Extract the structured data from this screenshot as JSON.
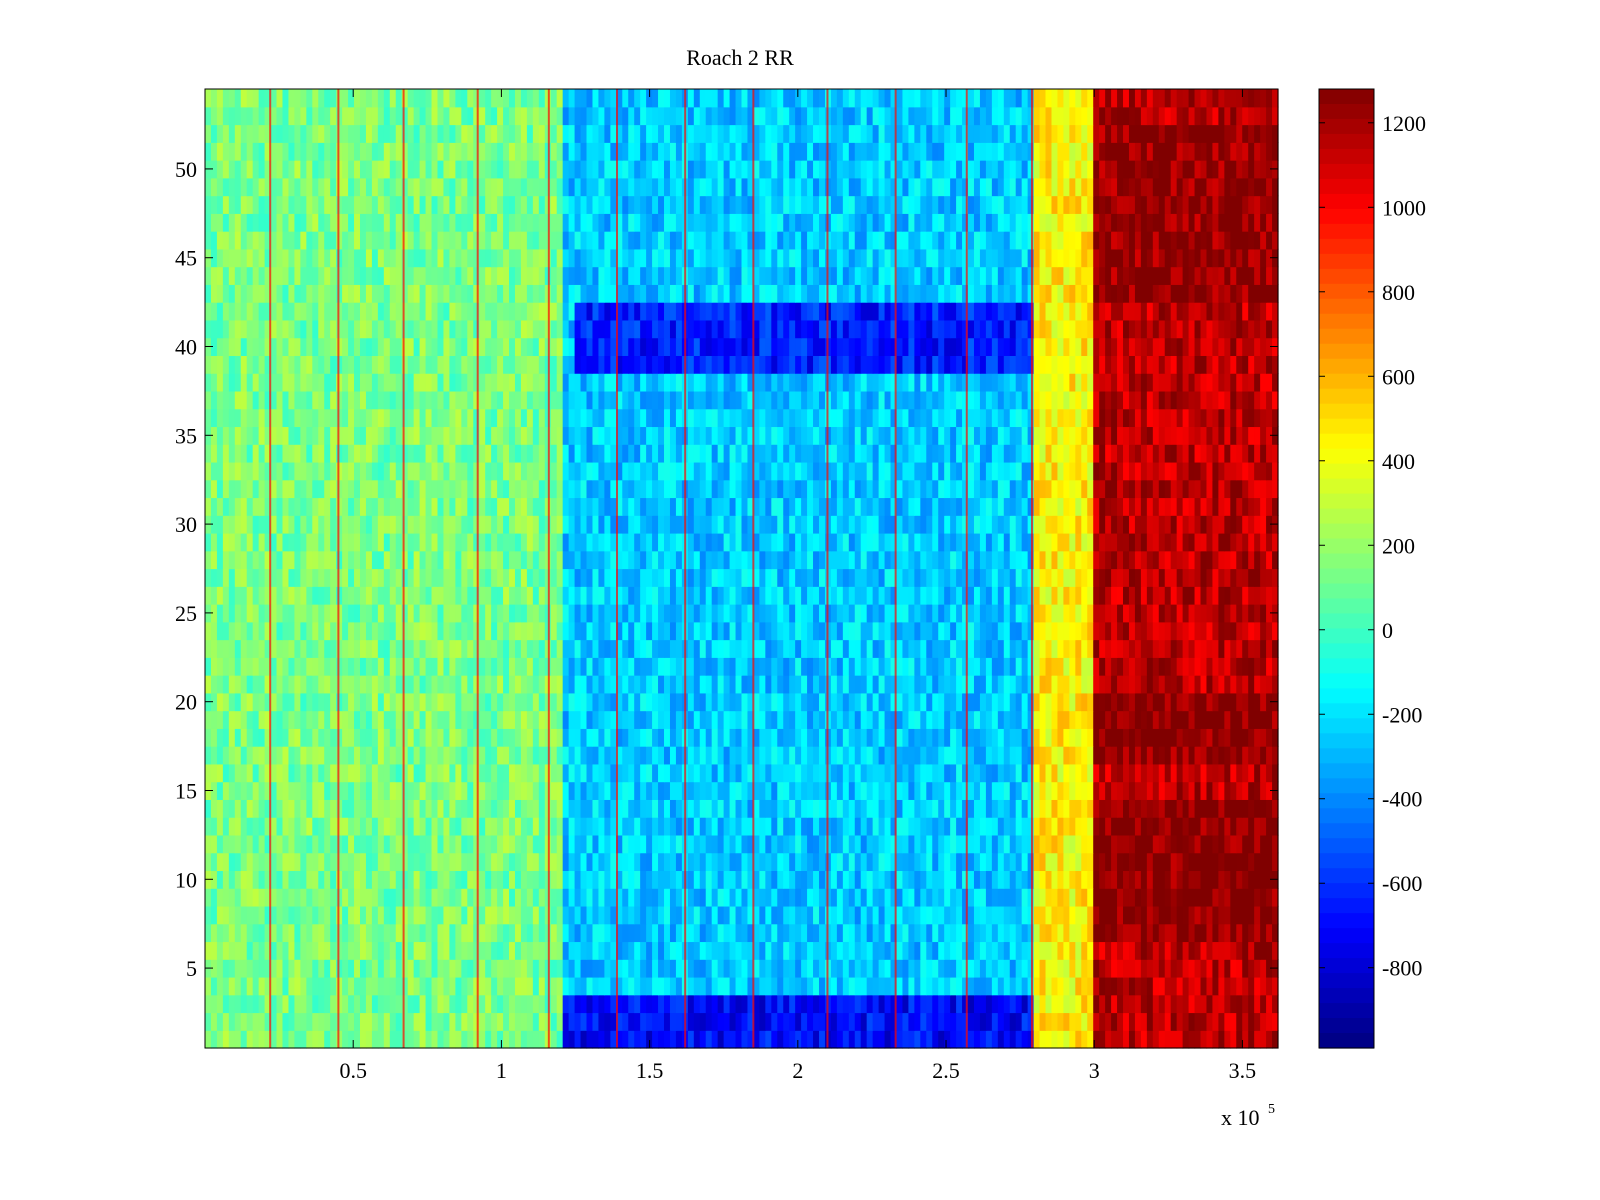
{
  "chart_data": {
    "type": "heatmap",
    "title": "Roach 2 RR",
    "xlabel": "",
    "ylabel": "",
    "x_range": [
      0,
      362000
    ],
    "y_range": [
      0.5,
      54.5
    ],
    "x_tick_values": [
      50000,
      100000,
      150000,
      200000,
      250000,
      300000,
      350000
    ],
    "x_tick_labels": [
      "0.5",
      "1",
      "1.5",
      "2",
      "2.5",
      "3",
      "3.5"
    ],
    "x_exponent_label": "x 10",
    "x_exponent_power": "5",
    "y_tick_values": [
      5,
      10,
      15,
      20,
      25,
      30,
      35,
      40,
      45,
      50
    ],
    "y_tick_labels": [
      "5",
      "10",
      "15",
      "20",
      "25",
      "30",
      "35",
      "40",
      "45",
      "50"
    ],
    "rows": 54,
    "colormap": "jet",
    "clim": [
      -990,
      1280
    ],
    "colorbar_tick_values": [
      1200,
      1000,
      800,
      600,
      400,
      200,
      0,
      -200,
      -400,
      -600,
      -800
    ],
    "colorbar_tick_labels": [
      "1200",
      "1000",
      "800",
      "600",
      "400",
      "200",
      "0",
      "-200",
      "-400",
      "-600",
      "-800"
    ],
    "grid": false,
    "regions": [
      {
        "x": [
          0,
          120000
        ],
        "typical_value": 130
      },
      {
        "x": [
          120000,
          280000
        ],
        "typical_value": -250
      },
      {
        "x": [
          280000,
          300000
        ],
        "typical_value": 450
      },
      {
        "x": [
          300000,
          362000
        ],
        "typical_value": 1150
      }
    ],
    "low_bands": [
      {
        "rows": [
          39,
          42
        ],
        "x": [
          125000,
          280000
        ],
        "typical_value": -650
      },
      {
        "rows": [
          1,
          3
        ],
        "x": [
          120000,
          280000
        ],
        "typical_value": -700
      }
    ],
    "high_bands": [
      {
        "rows": [
          7,
          14
        ],
        "x": [
          300000,
          362000
        ],
        "typical_value": 1280
      },
      {
        "rows": [
          17,
          20
        ],
        "x": [
          300000,
          362000
        ],
        "typical_value": 1270
      },
      {
        "rows": [
          43,
          52
        ],
        "x": [
          300000,
          362000
        ],
        "typical_value": 1250
      }
    ],
    "spike_columns_x": [
      22000,
      45000,
      67000,
      92000,
      116000,
      139000,
      162000,
      185000,
      210000,
      233000,
      257000,
      279000
    ]
  }
}
